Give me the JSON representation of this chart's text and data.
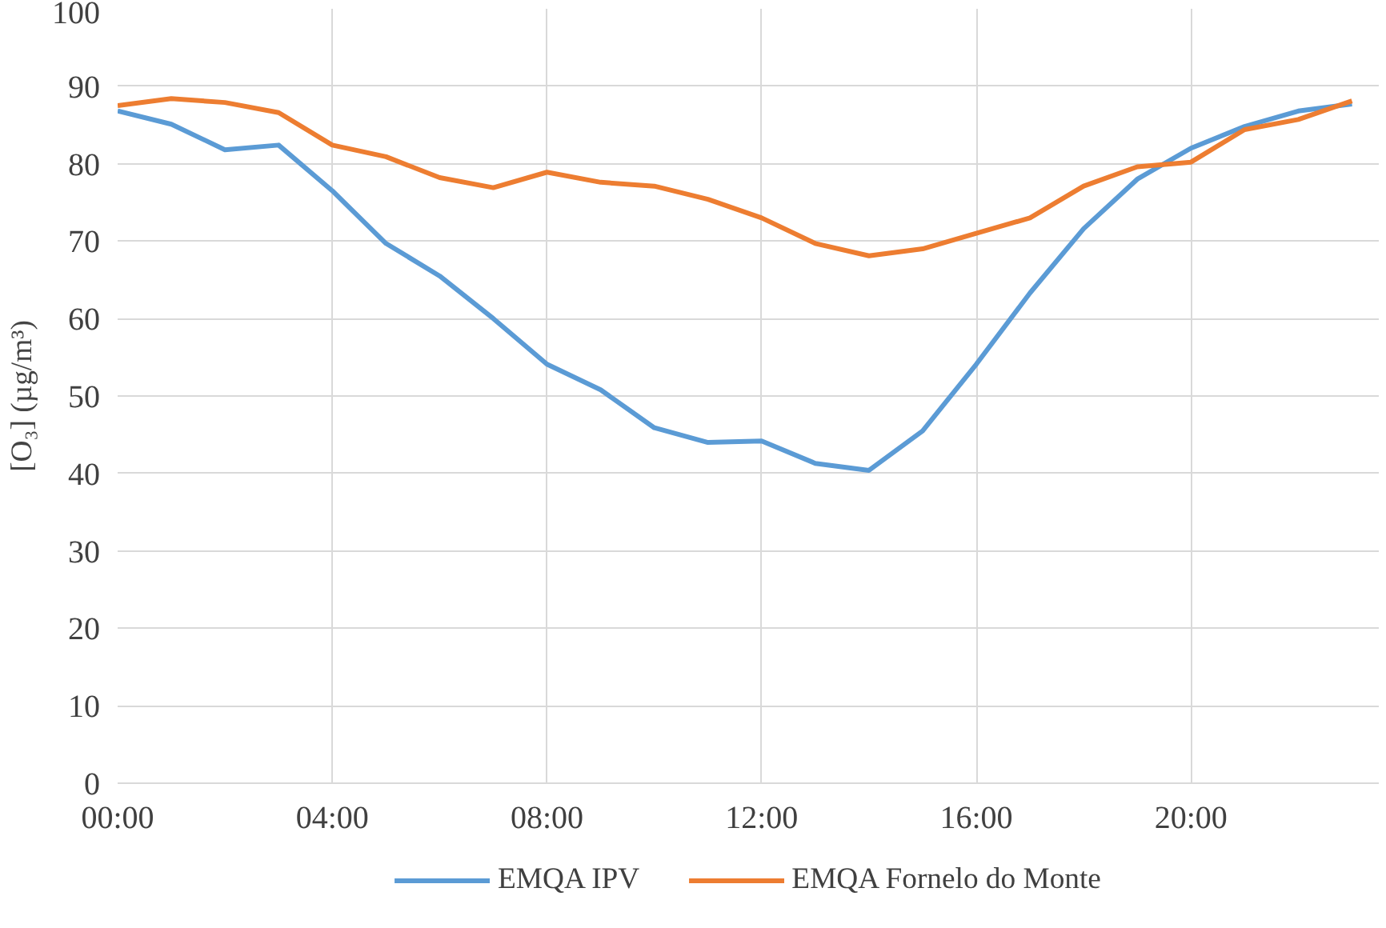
{
  "chart_data": {
    "type": "line",
    "ylabel": "[O₃] (µg/m³)",
    "x": [
      0,
      1,
      2,
      3,
      4,
      5,
      6,
      7,
      8,
      9,
      10,
      11,
      12,
      13,
      14,
      15,
      16,
      17,
      18,
      19,
      20,
      21,
      22,
      23
    ],
    "series": [
      {
        "name": "EMQA IPV",
        "color": "#5b9bd5",
        "values": [
          86.8,
          85.1,
          81.8,
          82.4,
          76.5,
          69.7,
          65.5,
          60.0,
          54.1,
          50.8,
          45.9,
          44.0,
          44.2,
          41.3,
          40.4,
          45.5,
          54.1,
          63.3,
          71.6,
          78.0,
          82.0,
          84.8,
          86.8,
          87.7
        ]
      },
      {
        "name": "EMQA Fornelo do Monte",
        "color": "#ed7d31",
        "values": [
          87.5,
          88.4,
          87.9,
          86.6,
          82.4,
          80.9,
          78.2,
          76.9,
          78.9,
          77.6,
          77.1,
          75.4,
          73.0,
          69.7,
          68.1,
          69.0,
          71.0,
          73.0,
          77.1,
          79.6,
          80.2,
          84.4,
          85.7,
          88.1
        ]
      }
    ],
    "xlim": [
      0,
      23.5
    ],
    "xticks": [
      {
        "value": 0,
        "label": "00:00"
      },
      {
        "value": 4,
        "label": "04:00"
      },
      {
        "value": 8,
        "label": "08:00"
      },
      {
        "value": 12,
        "label": "12:00"
      },
      {
        "value": 16,
        "label": "16:00"
      },
      {
        "value": 20,
        "label": "20:00"
      }
    ],
    "ylim": [
      0,
      100
    ],
    "yticks": [
      0,
      10,
      20,
      30,
      40,
      50,
      60,
      70,
      80,
      90,
      100
    ],
    "grid": true,
    "legend": "bottom",
    "line_style": "solid"
  }
}
